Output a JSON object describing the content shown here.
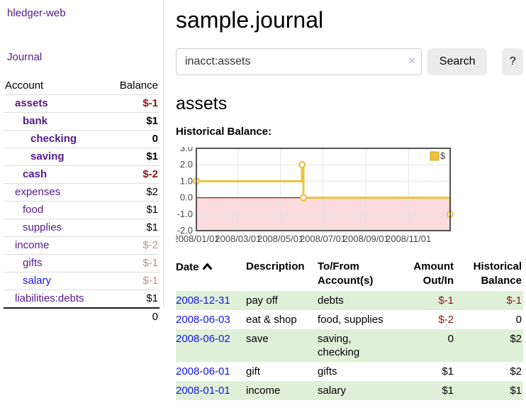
{
  "app": {
    "brand": "hledger-web"
  },
  "colors": {
    "purple": "#551A8B",
    "blue": "#1414EE",
    "negative": "#8B1515",
    "negative_muted": "#BC8F8F",
    "stripe_green": "#DFF0D8",
    "gold": "#EDC240"
  },
  "sidebar": {
    "nav": {
      "journal": "Journal"
    },
    "accounts_table": {
      "headers": {
        "account": "Account",
        "balance": "Balance"
      },
      "rows": [
        {
          "name": "assets",
          "depth": 1,
          "bold": true,
          "link_color": "purple",
          "balance": "$-1",
          "negative": true
        },
        {
          "name": "bank",
          "depth": 2,
          "bold": true,
          "link_color": "purple",
          "balance": "$1",
          "negative": false
        },
        {
          "name": "checking",
          "depth": 3,
          "bold": true,
          "link_color": "purple",
          "balance": "0",
          "negative": false
        },
        {
          "name": "saving",
          "depth": 3,
          "bold": true,
          "link_color": "purple",
          "balance": "$1",
          "negative": false
        },
        {
          "name": "cash",
          "depth": 2,
          "bold": true,
          "link_color": "purple",
          "balance": "$-2",
          "negative": true
        },
        {
          "name": "expenses",
          "depth": 1,
          "bold": false,
          "link_color": "purple",
          "balance": "$2",
          "negative": false
        },
        {
          "name": "food",
          "depth": 2,
          "bold": false,
          "link_color": "purple",
          "balance": "$1",
          "negative": false
        },
        {
          "name": "supplies",
          "depth": 2,
          "bold": false,
          "link_color": "purple",
          "balance": "$1",
          "negative": false
        },
        {
          "name": "income",
          "depth": 1,
          "bold": false,
          "link_color": "purple",
          "balance": "$-2",
          "negative": true
        },
        {
          "name": "gifts",
          "depth": 2,
          "bold": false,
          "link_color": "purple",
          "balance": "$-1",
          "negative": true
        },
        {
          "name": "salary",
          "depth": 2,
          "bold": false,
          "link_color": "blue",
          "balance": "$-1",
          "negative": true
        },
        {
          "name": "liabilities:debts",
          "depth": 1,
          "bold": false,
          "link_color": "purple",
          "balance": "$1",
          "negative": false
        }
      ],
      "total": "0"
    }
  },
  "header": {
    "title": "sample.journal"
  },
  "search": {
    "value": "inacct:assets",
    "clear_icon": "×",
    "button_label": "Search",
    "help_label": "?"
  },
  "account_page": {
    "heading": "assets",
    "chart_label": "Historical Balance:"
  },
  "chart_data": {
    "type": "line",
    "title": "Historical Balance:",
    "step": true,
    "ylim": [
      -2,
      3
    ],
    "y_ticks": [
      3.0,
      2.0,
      1.0,
      0.0,
      -1.0,
      -2.0
    ],
    "x_range_days": [
      0,
      365
    ],
    "x_ticks": [
      {
        "label": "2008/01/01",
        "day": 0
      },
      {
        "label": "2008/03/01",
        "day": 60
      },
      {
        "label": "2008/05/01",
        "day": 121
      },
      {
        "label": "2008/07/01",
        "day": 182
      },
      {
        "label": "2008/09/01",
        "day": 244
      },
      {
        "label": "2008/11/01",
        "day": 305
      }
    ],
    "series": [
      {
        "name": "$",
        "color": "#EDC240",
        "points": [
          {
            "date": "2008-01-01",
            "day": 0,
            "value": 1
          },
          {
            "date": "2008-06-01",
            "day": 152,
            "value": 2
          },
          {
            "date": "2008-06-03",
            "day": 154,
            "value": 0
          },
          {
            "date": "2008-12-31",
            "day": 365,
            "value": -1
          }
        ]
      }
    ],
    "legend_position": "top-right",
    "grid": true,
    "negative_region_color": "#FBDBDB",
    "zero_line_color": "#9B1C1C",
    "border_color": "#545454",
    "gridline_color": "#E2E2E2"
  },
  "register_table": {
    "headers": {
      "date": "Date",
      "description": "Description",
      "accounts": "To/From Account(s)",
      "amount": "Amount Out/In",
      "balance": "Historical Balance"
    },
    "rows": [
      {
        "date": "2008-12-31",
        "description": "pay off",
        "accounts": "debts",
        "amount": "$-1",
        "amount_negative": true,
        "balance": "$-1",
        "balance_negative": true
      },
      {
        "date": "2008-06-03",
        "description": "eat & shop",
        "accounts": "food, supplies",
        "amount": "$-2",
        "amount_negative": true,
        "balance": "0",
        "balance_negative": false
      },
      {
        "date": "2008-06-02",
        "description": "save",
        "accounts": "saving, checking",
        "amount": "0",
        "amount_negative": false,
        "balance": "$2",
        "balance_negative": false
      },
      {
        "date": "2008-06-01",
        "description": "gift",
        "accounts": "gifts",
        "amount": "$1",
        "amount_negative": false,
        "balance": "$2",
        "balance_negative": false
      },
      {
        "date": "2008-01-01",
        "description": "income",
        "accounts": "salary",
        "amount": "$1",
        "amount_negative": false,
        "balance": "$1",
        "balance_negative": false
      }
    ]
  }
}
